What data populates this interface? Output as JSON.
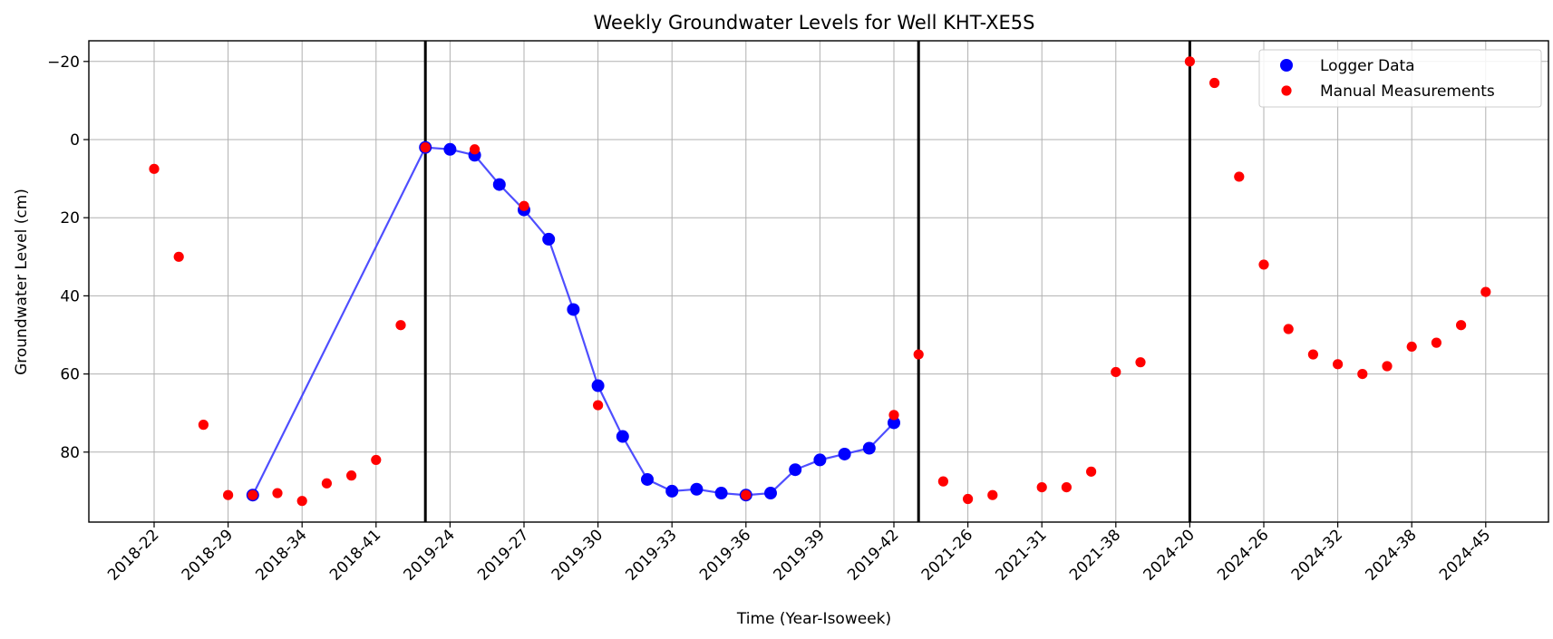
{
  "chart_data": {
    "type": "scatter",
    "title": "Weekly Groundwater Levels for Well KHT-XE5S",
    "xlabel": "Time (Year-Isoweek)",
    "ylabel": "Groundwater Level (cm)",
    "y_inverted": true,
    "ylim": [
      98,
      -25
    ],
    "yticks": [
      -20,
      0,
      20,
      40,
      60,
      80
    ],
    "ytick_labels": [
      "−20",
      "0",
      "20",
      "40",
      "60",
      "80"
    ],
    "grid": true,
    "legend_position": "top-right",
    "xtick_labels": [
      "2018-22",
      "2018-29",
      "2018-34",
      "2018-41",
      "2019-24",
      "2019-27",
      "2019-30",
      "2019-33",
      "2019-36",
      "2019-39",
      "2019-42",
      "2021-26",
      "2021-31",
      "2021-38",
      "2024-20",
      "2024-26",
      "2024-32",
      "2024-38",
      "2024-45"
    ],
    "xtick_positions": [
      0,
      3,
      6,
      9,
      12,
      15,
      18,
      21,
      24,
      27,
      30,
      33,
      36,
      39,
      42,
      45,
      48,
      51,
      54
    ],
    "period_separators": [
      11,
      31,
      42
    ],
    "series": [
      {
        "name": "Logger Data",
        "color": "#0000ff",
        "line_color": "#3b3bff",
        "connected": true,
        "x": [
          4,
          11,
          12,
          13,
          14,
          15,
          16,
          17,
          18,
          19,
          20,
          21,
          22,
          23,
          24,
          25,
          26,
          27,
          28,
          29,
          30
        ],
        "y": [
          91,
          2,
          2.5,
          4,
          11.5,
          18,
          25.5,
          43.5,
          63,
          76,
          87,
          90,
          89.5,
          90.5,
          91,
          90.5,
          84.5,
          82,
          80.5,
          79,
          72.5
        ]
      },
      {
        "name": "Manual Measurements",
        "color": "#ff0000",
        "connected": false,
        "x": [
          0,
          1,
          2,
          3,
          4,
          5,
          6,
          7,
          8,
          9,
          10,
          11,
          13,
          15,
          18,
          24,
          30,
          31,
          32,
          33,
          34,
          36,
          37,
          38,
          39,
          40,
          42,
          43,
          44,
          45,
          46,
          47,
          48,
          49,
          50,
          51,
          52,
          53,
          54
        ],
        "y": [
          7.5,
          30,
          73,
          91,
          91,
          90.5,
          92.5,
          88,
          86,
          82,
          47.5,
          2,
          2.5,
          17,
          68,
          91,
          70.5,
          55,
          87.5,
          92,
          91,
          89,
          89,
          85,
          59.5,
          57,
          -20,
          -14.5,
          9.5,
          32,
          48.5,
          55,
          57.5,
          60,
          58,
          53,
          52,
          47.5,
          39
        ]
      }
    ]
  }
}
